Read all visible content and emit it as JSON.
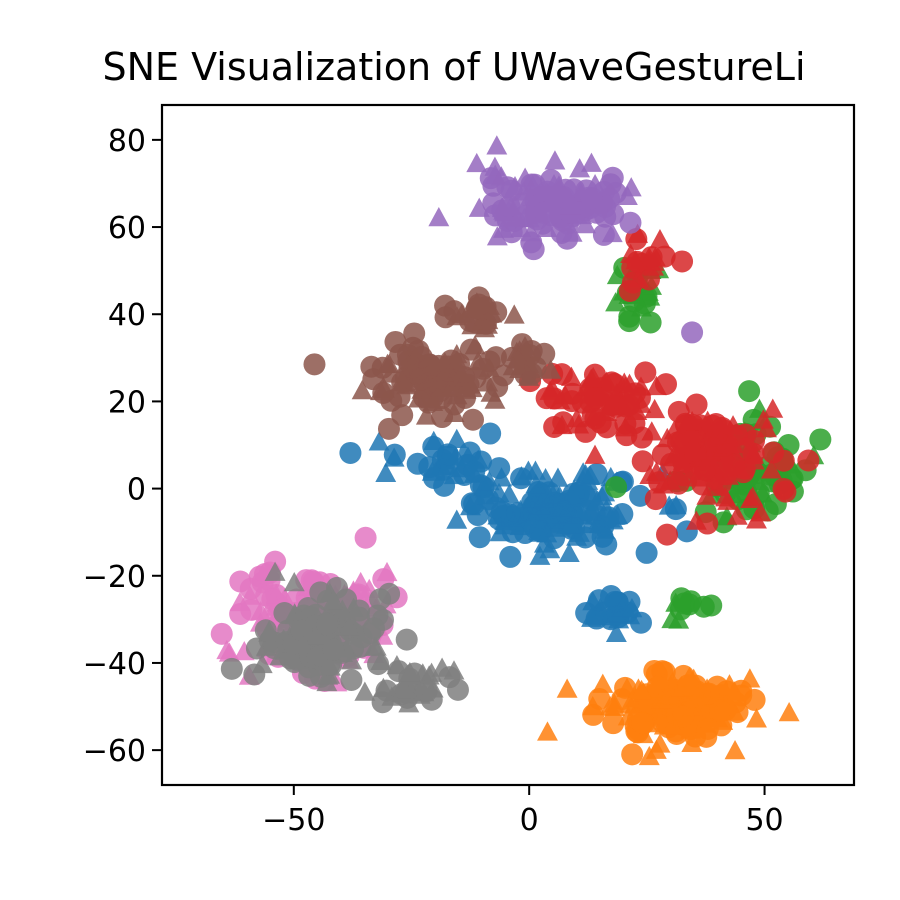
{
  "chart_data": {
    "type": "scatter",
    "title": "t-SNE Visualization of UWaveGestureLibrary",
    "title_visible": "SNE Visualization of UWaveGestureLi",
    "xlabel": "",
    "ylabel": "",
    "xlim": [
      -78,
      69
    ],
    "ylim": [
      -68,
      88
    ],
    "xticks": [
      -50,
      0,
      50
    ],
    "yticks": [
      -60,
      -40,
      -20,
      0,
      20,
      40,
      60,
      80
    ],
    "xtick_labels": [
      "−50",
      "0",
      "50"
    ],
    "ytick_labels": [
      "−60",
      "−40",
      "−20",
      "0",
      "20",
      "40",
      "60",
      "80"
    ],
    "grid": false,
    "legend": "none",
    "marker_opacity": 0.85,
    "markers": [
      "circle",
      "triangle"
    ],
    "series": [
      {
        "color": "#1f77b4",
        "clusters": [
          {
            "center": [
              5,
              -5
            ],
            "spread": [
              18,
              8
            ],
            "count": 140
          },
          {
            "center": [
              -15,
              5
            ],
            "spread": [
              12,
              5
            ],
            "count": 40
          },
          {
            "center": [
              18,
              -28
            ],
            "spread": [
              6,
              4
            ],
            "count": 25
          }
        ]
      },
      {
        "color": "#ff7f0e",
        "clusters": [
          {
            "center": [
              30,
              -50
            ],
            "spread": [
              14,
              7
            ],
            "count": 180
          }
        ]
      },
      {
        "color": "#2ca02c",
        "clusters": [
          {
            "center": [
              45,
              5
            ],
            "spread": [
              12,
              10
            ],
            "count": 90
          },
          {
            "center": [
              22,
              45
            ],
            "spread": [
              6,
              6
            ],
            "count": 25
          },
          {
            "center": [
              35,
              -28
            ],
            "spread": [
              5,
              4
            ],
            "count": 10
          }
        ]
      },
      {
        "color": "#d62728",
        "clusters": [
          {
            "center": [
              38,
              8
            ],
            "spread": [
              14,
              10
            ],
            "count": 120
          },
          {
            "center": [
              15,
              20
            ],
            "spread": [
              12,
              7
            ],
            "count": 70
          },
          {
            "center": [
              25,
              52
            ],
            "spread": [
              6,
              5
            ],
            "count": 20
          }
        ]
      },
      {
        "color": "#9467bd",
        "clusters": [
          {
            "center": [
              5,
              65
            ],
            "spread": [
              14,
              7
            ],
            "count": 130
          },
          {
            "center": [
              35,
              36
            ],
            "spread": [
              1,
              1
            ],
            "count": 1
          }
        ]
      },
      {
        "color": "#8c564b",
        "clusters": [
          {
            "center": [
              -20,
              25
            ],
            "spread": [
              14,
              7
            ],
            "count": 110
          },
          {
            "center": [
              -10,
              40
            ],
            "spread": [
              6,
              4
            ],
            "count": 25
          },
          {
            "center": [
              0,
              30
            ],
            "spread": [
              5,
              5
            ],
            "count": 20
          }
        ]
      },
      {
        "color": "#e377c2",
        "clusters": [
          {
            "center": [
              -45,
              -30
            ],
            "spread": [
              14,
              10
            ],
            "count": 150
          }
        ]
      },
      {
        "color": "#7f7f7f",
        "clusters": [
          {
            "center": [
              -45,
              -35
            ],
            "spread": [
              11,
              10
            ],
            "count": 130
          },
          {
            "center": [
              -25,
              -45
            ],
            "spread": [
              8,
              5
            ],
            "count": 30
          }
        ]
      }
    ]
  }
}
